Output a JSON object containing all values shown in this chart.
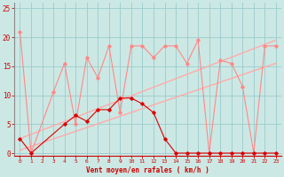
{
  "bg_color": "#cce8e4",
  "grid_color": "#99cccc",
  "x_values": [
    0,
    1,
    2,
    3,
    4,
    5,
    6,
    7,
    8,
    9,
    10,
    11,
    12,
    13,
    14,
    15,
    16,
    17,
    18,
    19,
    20,
    21,
    22,
    23
  ],
  "series_red": {
    "color": "#dd0000",
    "values": [
      2.5,
      0,
      null,
      null,
      5.0,
      6.5,
      5.5,
      7.5,
      7.5,
      9.5,
      9.5,
      8.5,
      7.0,
      2.5,
      0,
      0,
      0,
      0,
      0,
      0,
      0,
      0,
      0,
      0
    ]
  },
  "series_pink": {
    "color": "#ff8888",
    "values": [
      21,
      0,
      null,
      10.5,
      15.5,
      5.0,
      16.5,
      13.0,
      18.5,
      7.0,
      18.5,
      18.5,
      16.5,
      18.5,
      18.5,
      15.5,
      19.5,
      0,
      16.0,
      15.5,
      11.5,
      0,
      18.5,
      18.5
    ]
  },
  "trend1": {
    "color": "#ffaaaa",
    "x": [
      0,
      23
    ],
    "y": [
      0.5,
      15.5
    ]
  },
  "trend2": {
    "color": "#ffaaaa",
    "x": [
      0,
      23
    ],
    "y": [
      2.5,
      19.5
    ]
  },
  "xlabel": "Vent moyen/en rafales ( km/h )",
  "ylim": [
    -0.5,
    26
  ],
  "xlim": [
    -0.5,
    23.5
  ],
  "yticks": [
    0,
    5,
    10,
    15,
    20,
    25
  ],
  "xticks": [
    0,
    1,
    2,
    3,
    4,
    5,
    6,
    7,
    8,
    9,
    10,
    11,
    12,
    13,
    14,
    15,
    16,
    17,
    18,
    19,
    20,
    21,
    22,
    23
  ]
}
